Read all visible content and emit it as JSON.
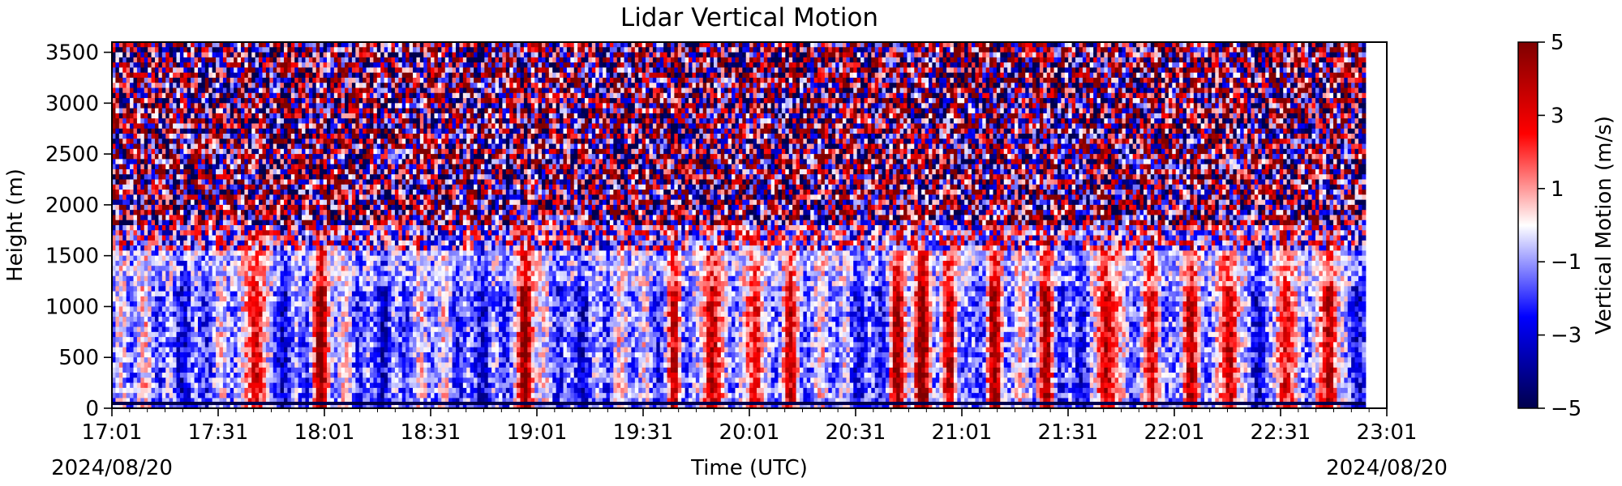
{
  "chart_data": {
    "type": "heatmap",
    "title": "Lidar Vertical Motion",
    "xlabel": "Time (UTC)",
    "ylabel": "Height (m)",
    "date_left": "2024/08/20",
    "date_right": "2024/08/20",
    "x_ticks": [
      "17:01",
      "17:31",
      "18:01",
      "18:31",
      "19:01",
      "19:31",
      "20:01",
      "20:31",
      "21:01",
      "21:31",
      "22:01",
      "22:31",
      "23:01"
    ],
    "x_range": [
      "17:01",
      "23:01"
    ],
    "data_time_end": "22:55",
    "y_ticks": [
      0,
      500,
      1000,
      1500,
      2000,
      2500,
      3000,
      3500
    ],
    "ylim": [
      0,
      3600
    ],
    "colorbar": {
      "label": "Vertical Motion (m/s)",
      "ticks": [
        "5",
        "3",
        "1",
        "−1",
        "−3",
        "−5"
      ],
      "range": [
        -5,
        5
      ],
      "colormap": "seismic",
      "colors": [
        "#00004c",
        "#0000ff",
        "#ffffff",
        "#ff0000",
        "#7f0000"
      ]
    },
    "features": {
      "noise_region_height_min": 1800,
      "boundary_layer_top": 1550,
      "updraft_times": [
        "17:42",
        "18:00",
        "18:58",
        "19:40",
        "19:50",
        "20:03",
        "20:12",
        "20:43",
        "20:50",
        "20:58",
        "21:10",
        "21:25",
        "21:42",
        "21:55",
        "22:05",
        "22:17",
        "22:32",
        "22:45"
      ]
    }
  }
}
